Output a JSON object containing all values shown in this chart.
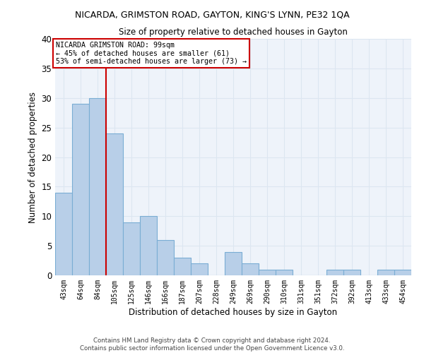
{
  "title_line1": "NICARDA, GRIMSTON ROAD, GAYTON, KING'S LYNN, PE32 1QA",
  "title_line2": "Size of property relative to detached houses in Gayton",
  "xlabel": "Distribution of detached houses by size in Gayton",
  "ylabel": "Number of detached properties",
  "categories": [
    "43sqm",
    "64sqm",
    "84sqm",
    "105sqm",
    "125sqm",
    "146sqm",
    "166sqm",
    "187sqm",
    "207sqm",
    "228sqm",
    "249sqm",
    "269sqm",
    "290sqm",
    "310sqm",
    "331sqm",
    "351sqm",
    "372sqm",
    "392sqm",
    "413sqm",
    "433sqm",
    "454sqm"
  ],
  "values": [
    14,
    29,
    30,
    24,
    9,
    10,
    6,
    3,
    2,
    0,
    4,
    2,
    1,
    1,
    0,
    0,
    1,
    1,
    0,
    1,
    1
  ],
  "bar_color": "#b8cfe8",
  "bar_edge_color": "#7aadd4",
  "grid_color": "#dce6f1",
  "background_color": "#eef3fa",
  "vline_x": 2.5,
  "vline_color": "#cc0000",
  "annotation_text": "NICARDA GRIMSTON ROAD: 99sqm\n← 45% of detached houses are smaller (61)\n53% of semi-detached houses are larger (73) →",
  "annotation_box_color": "#ffffff",
  "annotation_box_edge": "#cc0000",
  "footer_line1": "Contains HM Land Registry data © Crown copyright and database right 2024.",
  "footer_line2": "Contains public sector information licensed under the Open Government Licence v3.0.",
  "ylim": [
    0,
    40
  ],
  "yticks": [
    0,
    5,
    10,
    15,
    20,
    25,
    30,
    35,
    40
  ]
}
